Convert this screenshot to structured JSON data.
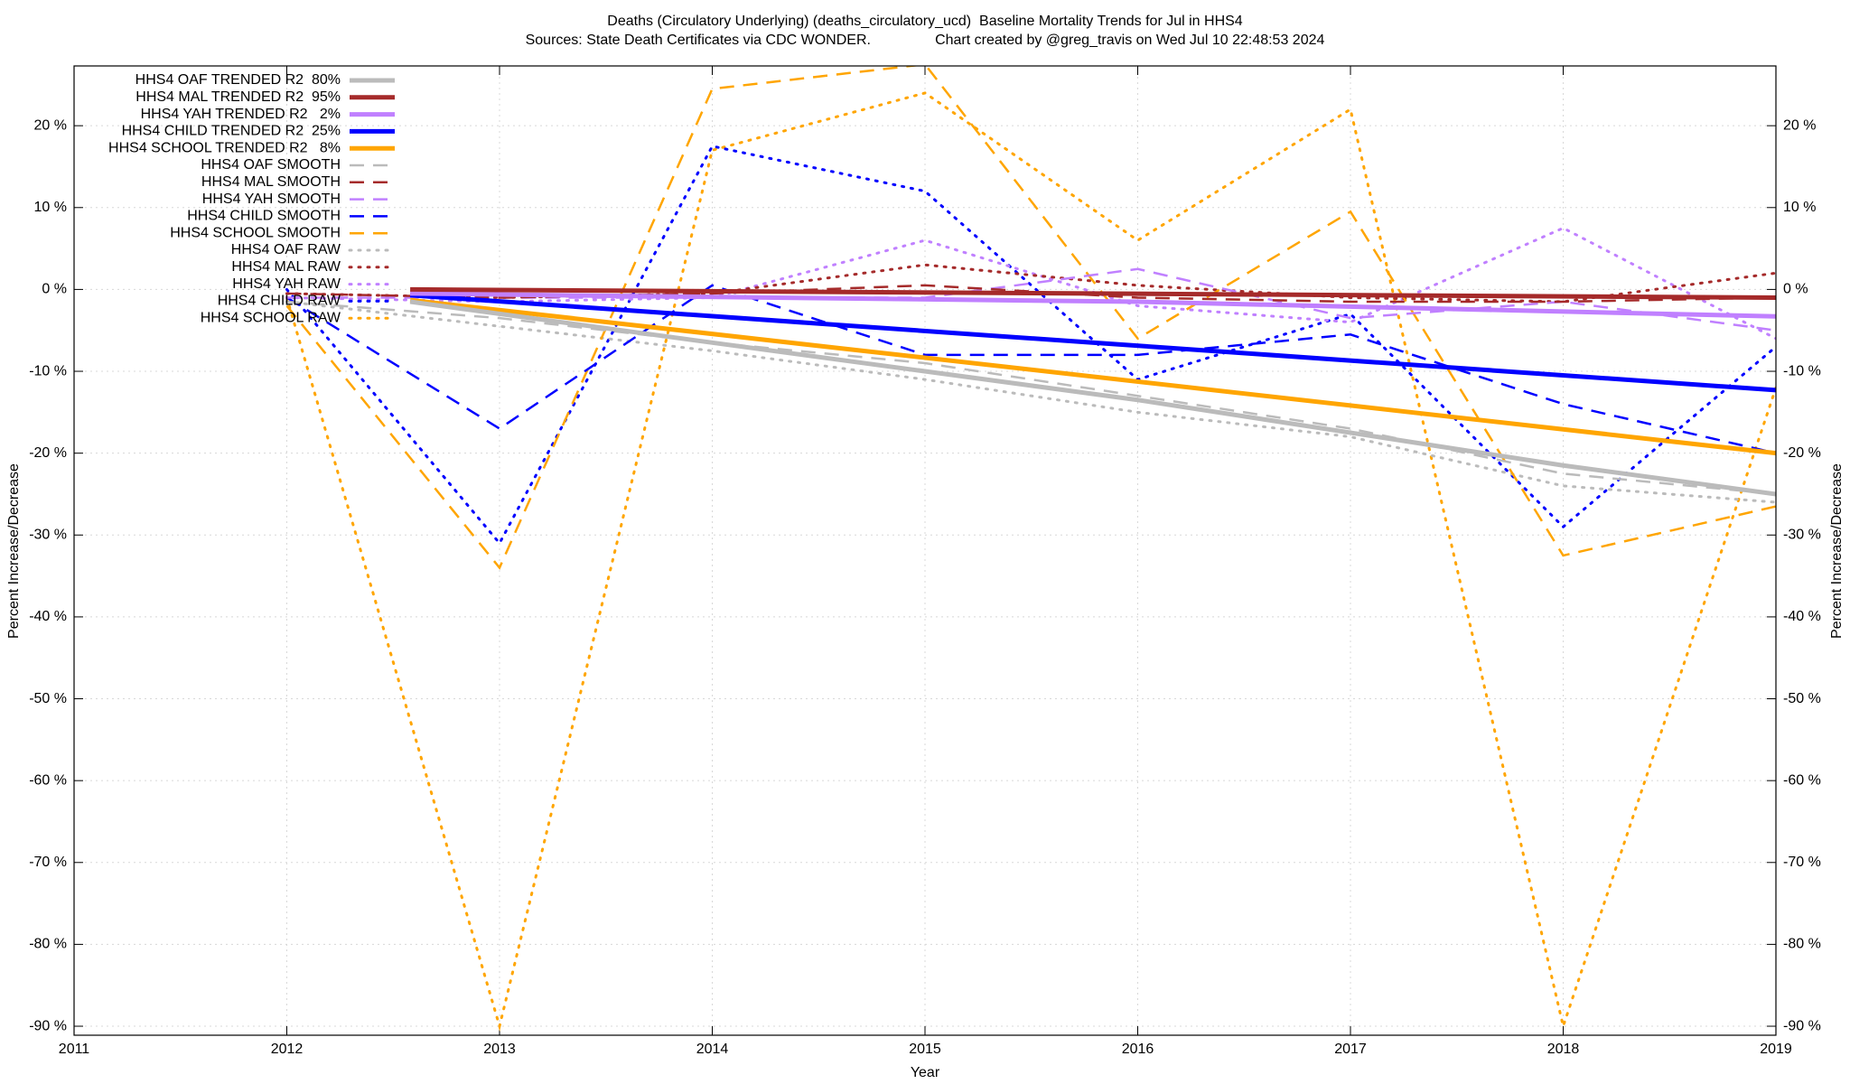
{
  "chart_data": {
    "type": "line",
    "title": "Deaths (Circulatory Underlying) (deaths_circulatory_ucd)  Baseline Mortality Trends for Jul in HHS4",
    "subtitle": "Sources: State Death Certificates via CDC WONDER.                Chart created by @greg_travis on Wed Jul 10 22:48:53 2024",
    "xlabel": "Year",
    "ylabel": "Percent Increase/Decrease",
    "y2label": "Percent Increase/Decrease",
    "xlim": [
      2011,
      2019
    ],
    "xticks": [
      2011,
      2012,
      2013,
      2014,
      2015,
      2016,
      2017,
      2018,
      2019
    ],
    "ylim": [
      -91.1,
      27.3
    ],
    "yticks": [
      {
        "value": -90,
        "label": "-90 %"
      },
      {
        "value": -80,
        "label": "-80 %"
      },
      {
        "value": -70,
        "label": "-70 %"
      },
      {
        "value": -60,
        "label": "-60 %"
      },
      {
        "value": -50,
        "label": "-50 %"
      },
      {
        "value": -40,
        "label": "-40 %"
      },
      {
        "value": -30,
        "label": "-30 %"
      },
      {
        "value": -20,
        "label": "-20 %"
      },
      {
        "value": -10,
        "label": "-10 %"
      },
      {
        "value": 0,
        "label": "0 %"
      },
      {
        "value": 10,
        "label": "10 %"
      },
      {
        "value": 20,
        "label": "20 %"
      }
    ],
    "y2lim": [
      -91.1,
      27.3
    ],
    "y2ticks": [
      {
        "value": -90,
        "label": "-90 %"
      },
      {
        "value": -80,
        "label": "-80 %"
      },
      {
        "value": -70,
        "label": "-70 %"
      },
      {
        "value": -60,
        "label": "-60 %"
      },
      {
        "value": -50,
        "label": "-50 %"
      },
      {
        "value": -40,
        "label": "-40 %"
      },
      {
        "value": -30,
        "label": "-30 %"
      },
      {
        "value": -20,
        "label": "-20 %"
      },
      {
        "value": -10,
        "label": "-10 %"
      },
      {
        "value": 0,
        "label": "0 %"
      },
      {
        "value": 10,
        "label": "10 %"
      },
      {
        "value": 20,
        "label": "20 %"
      }
    ],
    "grid": true,
    "legend_position": "top-left",
    "series": [
      {
        "name": "HHS4 OAF TRENDED R2  80%",
        "color": "#bbbbbb",
        "style": "solid",
        "x": [
          2012.58,
          2014,
          2016,
          2018,
          2019
        ],
        "values": [
          -1.5,
          -6.5,
          -13.5,
          -21.5,
          -25
        ]
      },
      {
        "name": "HHS4 MAL TRENDED R2  95%",
        "color": "#a52a2a",
        "style": "solid",
        "x": [
          2012.58,
          2019
        ],
        "values": [
          0,
          -1
        ]
      },
      {
        "name": "HHS4 YAH TRENDED R2   2%",
        "color": "#c080ff",
        "style": "solid",
        "x": [
          2012.58,
          2016,
          2019
        ],
        "values": [
          -0.5,
          -1.5,
          -3.3
        ]
      },
      {
        "name": "HHS4 CHILD TRENDED R2  25%",
        "color": "#0000ff",
        "style": "solid",
        "x": [
          2012.58,
          2019
        ],
        "values": [
          -0.7,
          -12.3
        ]
      },
      {
        "name": "HHS4 SCHOOL TRENDED R2   8%",
        "color": "#ffa500",
        "style": "solid",
        "x": [
          2012.58,
          2019
        ],
        "values": [
          -1.3,
          -20
        ]
      },
      {
        "name": "HHS4 OAF SMOOTH",
        "color": "#bbbbbb",
        "style": "dashed",
        "x": [
          2012,
          2013,
          2014,
          2015,
          2016,
          2017,
          2018,
          2019
        ],
        "values": [
          -1.5,
          -3.5,
          -6.5,
          -9,
          -13,
          -17,
          -22.5,
          -25
        ]
      },
      {
        "name": "HHS4 MAL SMOOTH",
        "color": "#a52a2a",
        "style": "dashed",
        "x": [
          2012,
          2013,
          2014,
          2015,
          2016,
          2017,
          2018,
          2019
        ],
        "values": [
          -0.5,
          -1,
          -0.5,
          0.5,
          -1,
          -1.5,
          -1.5,
          -1
        ]
      },
      {
        "name": "HHS4 YAH SMOOTH",
        "color": "#c080ff",
        "style": "dashed",
        "x": [
          2012,
          2013,
          2014,
          2015,
          2016,
          2017,
          2018,
          2019
        ],
        "values": [
          -1,
          -1,
          -1,
          -1,
          2.5,
          -3.5,
          -1.5,
          -5
        ]
      },
      {
        "name": "HHS4 CHILD SMOOTH",
        "color": "#0000ff",
        "style": "dashed",
        "x": [
          2012,
          2013,
          2014,
          2015,
          2016,
          2017,
          2018,
          2019
        ],
        "values": [
          -1,
          -17,
          0.5,
          -8,
          -8,
          -5.5,
          -14,
          -20
        ]
      },
      {
        "name": "HHS4 SCHOOL SMOOTH",
        "color": "#ffa500",
        "style": "dashed",
        "x": [
          2012,
          2013,
          2014,
          2015,
          2016,
          2017,
          2018,
          2019
        ],
        "values": [
          -2,
          -34,
          24.5,
          27.5,
          -6,
          9.5,
          -32.5,
          -26.5
        ]
      },
      {
        "name": "HHS4 OAF RAW",
        "color": "#bbbbbb",
        "style": "dotted",
        "x": [
          2012,
          2013,
          2014,
          2015,
          2016,
          2017,
          2018,
          2019
        ],
        "values": [
          -1.5,
          -4.5,
          -7.5,
          -11,
          -15,
          -18,
          -24,
          -26
        ]
      },
      {
        "name": "HHS4 MAL RAW",
        "color": "#a52a2a",
        "style": "dotted",
        "x": [
          2012,
          2013,
          2014,
          2015,
          2016,
          2017,
          2018,
          2019
        ],
        "values": [
          -0.5,
          -1,
          -0.5,
          3,
          0.5,
          -1,
          -1.5,
          2
        ]
      },
      {
        "name": "HHS4 YAH RAW",
        "color": "#c080ff",
        "style": "dotted",
        "x": [
          2012,
          2013,
          2014,
          2015,
          2016,
          2017,
          2018,
          2019
        ],
        "values": [
          -1,
          -1.5,
          -1,
          6,
          -2,
          -4,
          7.5,
          -6
        ]
      },
      {
        "name": "HHS4 CHILD RAW",
        "color": "#0000ff",
        "style": "dotted",
        "x": [
          2012,
          2013,
          2014,
          2015,
          2016,
          2017,
          2018,
          2019
        ],
        "values": [
          0,
          -31,
          17.5,
          12,
          -11,
          -3,
          -29,
          -7
        ]
      },
      {
        "name": "HHS4 SCHOOL RAW",
        "color": "#ffa500",
        "style": "dotted",
        "x": [
          2012,
          2013,
          2014,
          2015,
          2016,
          2017,
          2018,
          2019
        ],
        "values": [
          -1,
          -90,
          17,
          24,
          6,
          22,
          -90,
          -12
        ]
      }
    ]
  }
}
